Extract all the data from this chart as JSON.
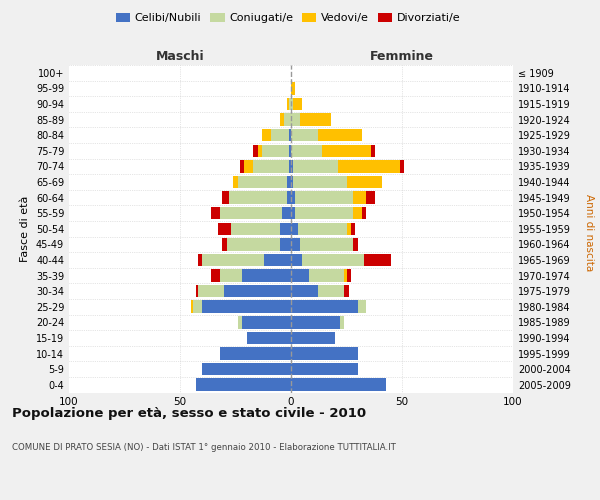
{
  "age_groups": [
    "100+",
    "95-99",
    "90-94",
    "85-89",
    "80-84",
    "75-79",
    "70-74",
    "65-69",
    "60-64",
    "55-59",
    "50-54",
    "45-49",
    "40-44",
    "35-39",
    "30-34",
    "25-29",
    "20-24",
    "15-19",
    "10-14",
    "5-9",
    "0-4"
  ],
  "birth_years": [
    "≤ 1909",
    "1910-1914",
    "1915-1919",
    "1920-1924",
    "1925-1929",
    "1930-1934",
    "1935-1939",
    "1940-1944",
    "1945-1949",
    "1950-1954",
    "1955-1959",
    "1960-1964",
    "1965-1969",
    "1970-1974",
    "1975-1979",
    "1980-1984",
    "1985-1989",
    "1990-1994",
    "1995-1999",
    "2000-2004",
    "2005-2009"
  ],
  "maschi": {
    "celibi": [
      0,
      0,
      0,
      0,
      1,
      1,
      1,
      2,
      2,
      4,
      5,
      5,
      12,
      22,
      30,
      40,
      22,
      20,
      32,
      40,
      43
    ],
    "coniugati": [
      0,
      0,
      1,
      3,
      8,
      12,
      16,
      22,
      26,
      28,
      22,
      24,
      28,
      10,
      12,
      4,
      2,
      0,
      0,
      0,
      0
    ],
    "vedovi": [
      0,
      0,
      1,
      2,
      4,
      2,
      4,
      2,
      0,
      0,
      0,
      0,
      0,
      0,
      0,
      1,
      0,
      0,
      0,
      0,
      0
    ],
    "divorziati": [
      0,
      0,
      0,
      0,
      0,
      2,
      2,
      0,
      3,
      4,
      6,
      2,
      2,
      4,
      1,
      0,
      0,
      0,
      0,
      0,
      0
    ]
  },
  "femmine": {
    "nubili": [
      0,
      0,
      0,
      0,
      0,
      0,
      1,
      1,
      2,
      2,
      3,
      4,
      5,
      8,
      12,
      30,
      22,
      20,
      30,
      30,
      43
    ],
    "coniugate": [
      0,
      0,
      1,
      4,
      12,
      14,
      20,
      24,
      26,
      26,
      22,
      24,
      28,
      16,
      12,
      4,
      2,
      0,
      0,
      0,
      0
    ],
    "vedove": [
      0,
      2,
      4,
      14,
      20,
      22,
      28,
      16,
      6,
      4,
      2,
      0,
      0,
      1,
      0,
      0,
      0,
      0,
      0,
      0,
      0
    ],
    "divorziate": [
      0,
      0,
      0,
      0,
      0,
      2,
      2,
      0,
      4,
      2,
      2,
      2,
      12,
      2,
      2,
      0,
      0,
      0,
      0,
      0,
      0
    ]
  },
  "colors": {
    "celibi": "#4472c4",
    "coniugati": "#c5d9a0",
    "vedovi": "#ffc000",
    "divorziati": "#cc0000"
  },
  "xlim": 100,
  "title": "Popolazione per età, sesso e stato civile - 2010",
  "subtitle": "COMUNE DI PRATO SESIA (NO) - Dati ISTAT 1° gennaio 2010 - Elaborazione TUTTITALIA.IT",
  "ylabel_left": "Fasce di età",
  "ylabel_right": "Anni di nascita",
  "xlabel_maschi": "Maschi",
  "xlabel_femmine": "Femmine",
  "bg_color": "#f0f0f0",
  "plot_bg_color": "#ffffff",
  "grid_color": "#cccccc"
}
